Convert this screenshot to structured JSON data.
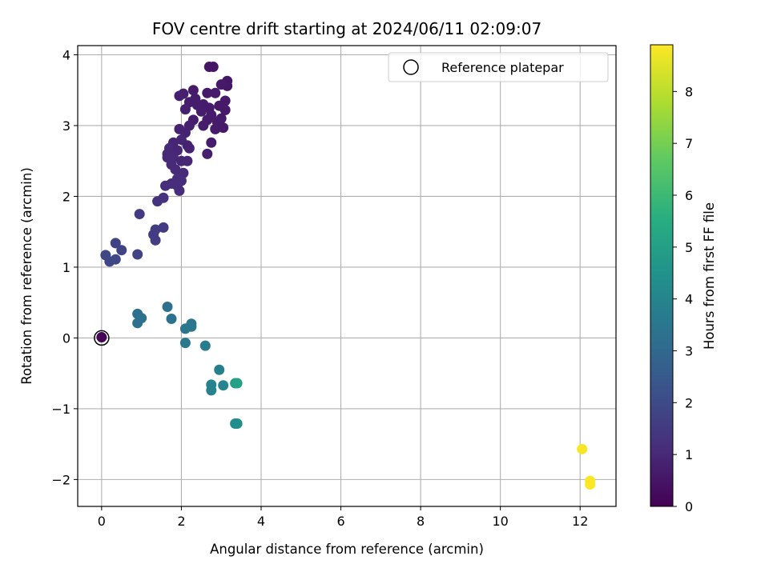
{
  "chart_data": {
    "type": "scatter",
    "title": "FOV centre drift starting at 2024/06/11 02:09:07",
    "xlabel": "Angular distance from reference (arcmin)",
    "ylabel": "Rotation from reference (arcmin)",
    "xlim": [
      -0.6,
      12.9
    ],
    "ylim": [
      -2.38,
      4.13
    ],
    "xticks": [
      0,
      2,
      4,
      6,
      8,
      10,
      12
    ],
    "yticks": [
      -2,
      -1,
      0,
      1,
      2,
      3,
      4
    ],
    "grid": true,
    "legend": {
      "position": "top-right",
      "label": "Reference platepar"
    },
    "reference_point": {
      "x": 0,
      "y": 0
    },
    "colorbar": {
      "label": "Hours from first FF file",
      "colormap": "viridis",
      "range": [
        0,
        8.9
      ],
      "ticks": [
        0,
        1,
        2,
        3,
        4,
        5,
        6,
        7,
        8
      ]
    },
    "points": [
      {
        "x": 0.0,
        "y": 0.01,
        "t": 0.05
      },
      {
        "x": 2.7,
        "y": 3.83,
        "t": 0.5
      },
      {
        "x": 2.8,
        "y": 3.83,
        "t": 0.5
      },
      {
        "x": 3.15,
        "y": 3.63,
        "t": 0.55
      },
      {
        "x": 3.15,
        "y": 3.56,
        "t": 0.55
      },
      {
        "x": 3.0,
        "y": 3.58,
        "t": 0.6
      },
      {
        "x": 2.3,
        "y": 3.5,
        "t": 0.6
      },
      {
        "x": 2.65,
        "y": 3.46,
        "t": 0.6
      },
      {
        "x": 2.85,
        "y": 3.46,
        "t": 0.65
      },
      {
        "x": 2.05,
        "y": 3.45,
        "t": 0.75
      },
      {
        "x": 1.95,
        "y": 3.42,
        "t": 0.75
      },
      {
        "x": 2.35,
        "y": 3.38,
        "t": 0.7
      },
      {
        "x": 2.2,
        "y": 3.33,
        "t": 0.7
      },
      {
        "x": 3.1,
        "y": 3.35,
        "t": 0.6
      },
      {
        "x": 2.55,
        "y": 3.3,
        "t": 0.65
      },
      {
        "x": 2.4,
        "y": 3.29,
        "t": 0.7
      },
      {
        "x": 2.95,
        "y": 3.28,
        "t": 0.6
      },
      {
        "x": 2.7,
        "y": 3.25,
        "t": 0.65
      },
      {
        "x": 2.1,
        "y": 3.23,
        "t": 0.75
      },
      {
        "x": 3.1,
        "y": 3.22,
        "t": 0.6
      },
      {
        "x": 2.5,
        "y": 3.2,
        "t": 0.7
      },
      {
        "x": 2.75,
        "y": 3.15,
        "t": 0.65
      },
      {
        "x": 3.0,
        "y": 3.1,
        "t": 0.6
      },
      {
        "x": 2.65,
        "y": 3.08,
        "t": 0.65
      },
      {
        "x": 2.3,
        "y": 3.08,
        "t": 0.7
      },
      {
        "x": 2.9,
        "y": 3.05,
        "t": 0.65
      },
      {
        "x": 2.55,
        "y": 3.0,
        "t": 0.7
      },
      {
        "x": 2.2,
        "y": 3.0,
        "t": 0.75
      },
      {
        "x": 3.05,
        "y": 2.97,
        "t": 0.6
      },
      {
        "x": 2.85,
        "y": 2.95,
        "t": 0.65
      },
      {
        "x": 1.95,
        "y": 2.95,
        "t": 0.85
      },
      {
        "x": 2.1,
        "y": 2.9,
        "t": 0.85
      },
      {
        "x": 2.0,
        "y": 2.8,
        "t": 0.9
      },
      {
        "x": 2.75,
        "y": 2.76,
        "t": 0.7
      },
      {
        "x": 1.8,
        "y": 2.76,
        "t": 0.9
      },
      {
        "x": 2.15,
        "y": 2.72,
        "t": 0.85
      },
      {
        "x": 1.7,
        "y": 2.68,
        "t": 1.0
      },
      {
        "x": 2.2,
        "y": 2.68,
        "t": 0.85
      },
      {
        "x": 1.9,
        "y": 2.65,
        "t": 0.95
      },
      {
        "x": 2.65,
        "y": 2.6,
        "t": 0.75
      },
      {
        "x": 1.65,
        "y": 2.6,
        "t": 1.0
      },
      {
        "x": 1.8,
        "y": 2.55,
        "t": 1.0
      },
      {
        "x": 1.65,
        "y": 2.55,
        "t": 1.0
      },
      {
        "x": 2.0,
        "y": 2.5,
        "t": 0.95
      },
      {
        "x": 2.15,
        "y": 2.5,
        "t": 0.95
      },
      {
        "x": 1.75,
        "y": 2.45,
        "t": 1.05
      },
      {
        "x": 1.85,
        "y": 2.38,
        "t": 1.05
      },
      {
        "x": 2.05,
        "y": 2.33,
        "t": 1.05
      },
      {
        "x": 1.9,
        "y": 2.25,
        "t": 1.1
      },
      {
        "x": 2.0,
        "y": 2.22,
        "t": 1.1
      },
      {
        "x": 1.75,
        "y": 2.18,
        "t": 1.15
      },
      {
        "x": 1.9,
        "y": 2.15,
        "t": 1.1
      },
      {
        "x": 1.6,
        "y": 2.15,
        "t": 1.2
      },
      {
        "x": 1.95,
        "y": 2.08,
        "t": 1.15
      },
      {
        "x": 1.55,
        "y": 1.98,
        "t": 1.25
      },
      {
        "x": 1.4,
        "y": 1.93,
        "t": 1.3
      },
      {
        "x": 0.95,
        "y": 1.75,
        "t": 1.5
      },
      {
        "x": 1.55,
        "y": 1.56,
        "t": 1.5
      },
      {
        "x": 1.35,
        "y": 1.53,
        "t": 1.55
      },
      {
        "x": 1.3,
        "y": 1.46,
        "t": 1.6
      },
      {
        "x": 1.35,
        "y": 1.38,
        "t": 1.6
      },
      {
        "x": 0.35,
        "y": 1.34,
        "t": 1.75
      },
      {
        "x": 0.5,
        "y": 1.24,
        "t": 1.8
      },
      {
        "x": 0.1,
        "y": 1.17,
        "t": 1.85
      },
      {
        "x": 0.9,
        "y": 1.18,
        "t": 1.8
      },
      {
        "x": 0.35,
        "y": 1.11,
        "t": 1.9
      },
      {
        "x": 0.2,
        "y": 1.08,
        "t": 1.9
      },
      {
        "x": 1.65,
        "y": 0.44,
        "t": 3.3
      },
      {
        "x": 0.9,
        "y": 0.34,
        "t": 3.25
      },
      {
        "x": 1.0,
        "y": 0.28,
        "t": 3.3
      },
      {
        "x": 1.75,
        "y": 0.27,
        "t": 3.35
      },
      {
        "x": 0.9,
        "y": 0.21,
        "t": 3.3
      },
      {
        "x": 2.25,
        "y": 0.2,
        "t": 3.5
      },
      {
        "x": 2.25,
        "y": 0.16,
        "t": 3.5
      },
      {
        "x": 2.1,
        "y": 0.13,
        "t": 3.45
      },
      {
        "x": 2.1,
        "y": -0.07,
        "t": 3.55
      },
      {
        "x": 2.6,
        "y": -0.11,
        "t": 3.7
      },
      {
        "x": 2.95,
        "y": -0.45,
        "t": 3.8
      },
      {
        "x": 3.35,
        "y": -0.64,
        "t": 5.0
      },
      {
        "x": 3.4,
        "y": -0.64,
        "t": 5.1
      },
      {
        "x": 2.75,
        "y": -0.66,
        "t": 3.9
      },
      {
        "x": 3.05,
        "y": -0.67,
        "t": 4.0
      },
      {
        "x": 2.75,
        "y": -0.74,
        "t": 3.9
      },
      {
        "x": 3.35,
        "y": -1.21,
        "t": 4.3
      },
      {
        "x": 3.4,
        "y": -1.21,
        "t": 4.35
      },
      {
        "x": 12.05,
        "y": -1.57,
        "t": 8.8
      },
      {
        "x": 12.25,
        "y": -2.02,
        "t": 8.85
      },
      {
        "x": 12.25,
        "y": -2.07,
        "t": 8.9
      }
    ]
  }
}
